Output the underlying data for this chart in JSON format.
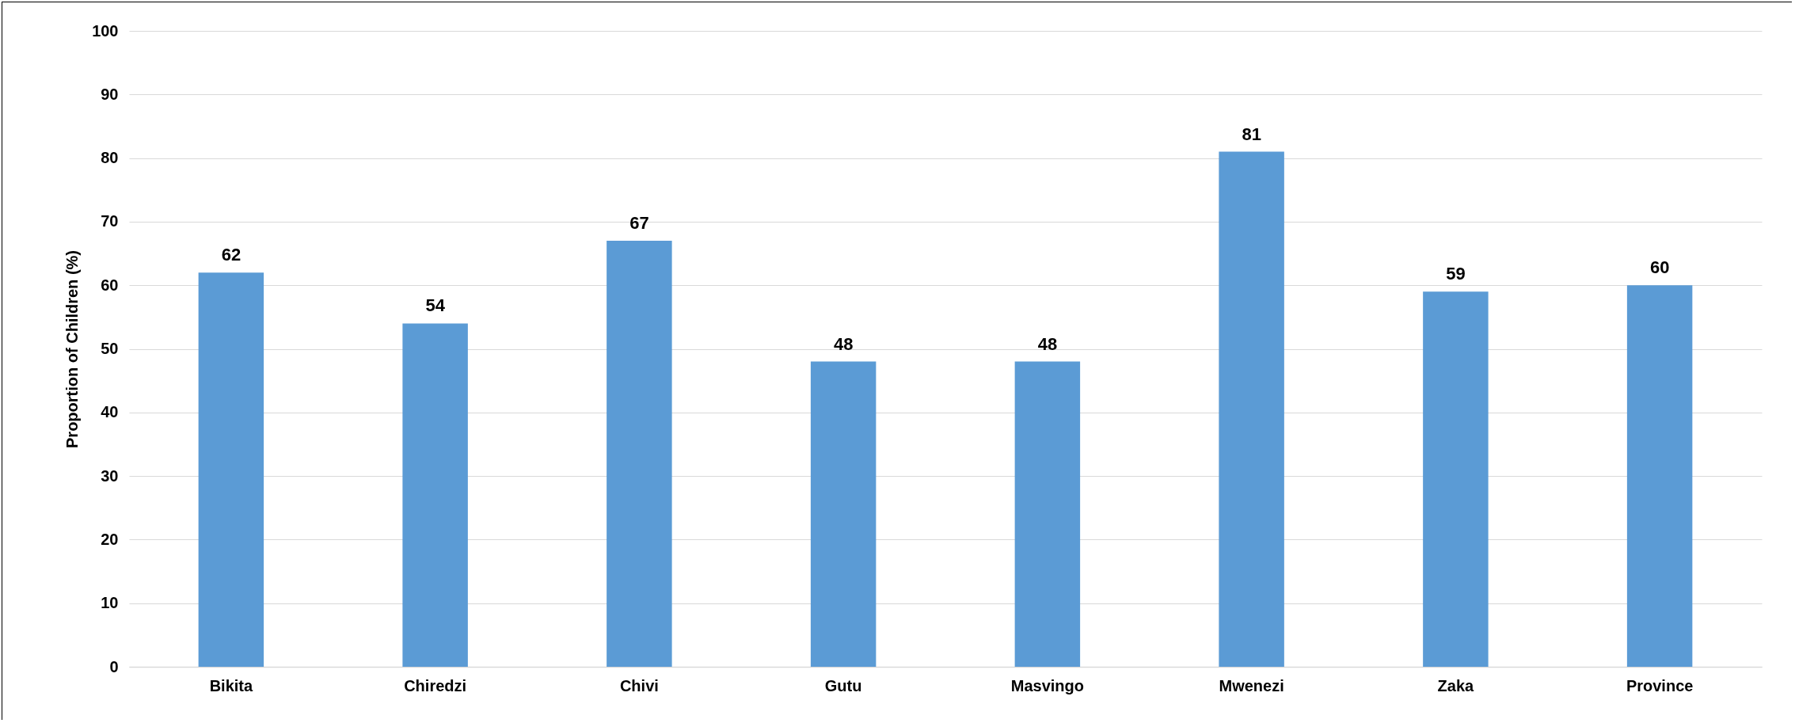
{
  "chart_data": {
    "type": "bar",
    "ylabel": "Proportion of Children (%)",
    "categories": [
      "Bikita",
      "Chiredzi",
      "Chivi",
      "Gutu",
      "Masvingo",
      "Mwenezi",
      "Zaka",
      "Province"
    ],
    "values": [
      62,
      54,
      67,
      48,
      48,
      81,
      59,
      60
    ],
    "color": "#5b9bd5",
    "ylim": [
      0,
      100
    ],
    "yticks": [
      0,
      10,
      20,
      30,
      40,
      50,
      60,
      70,
      80,
      90,
      100
    ],
    "grid": "y",
    "data_labels": true
  }
}
